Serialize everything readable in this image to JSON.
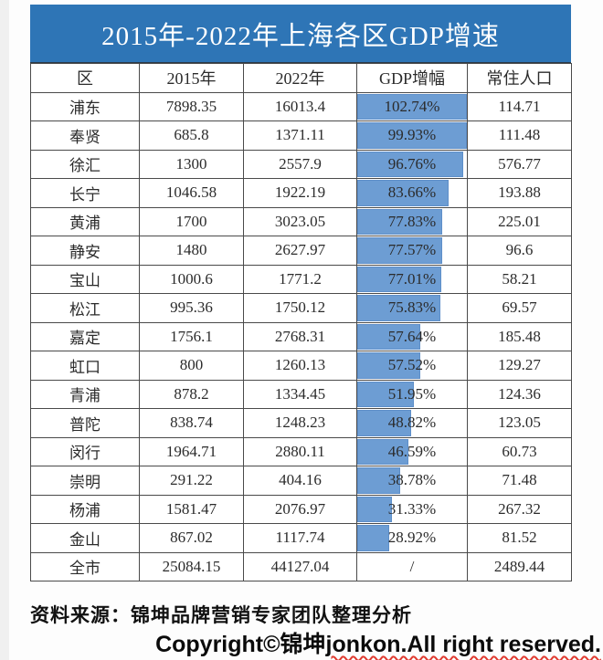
{
  "title": "2015年-2022年上海各区GDP增速",
  "table": {
    "headers": [
      "区",
      "2015年",
      "2022年",
      "GDP增幅",
      "常住人口"
    ],
    "rows": [
      {
        "district": "浦东",
        "gdp_2015": "7898.35",
        "gdp_2022": "16013.4",
        "growth": "102.74%",
        "growth_pct": 102.74,
        "population": "114.71"
      },
      {
        "district": "奉贤",
        "gdp_2015": "685.8",
        "gdp_2022": "1371.11",
        "growth": "99.93%",
        "growth_pct": 99.93,
        "population": "111.48"
      },
      {
        "district": "徐汇",
        "gdp_2015": "1300",
        "gdp_2022": "2557.9",
        "growth": "96.76%",
        "growth_pct": 96.76,
        "population": "576.77"
      },
      {
        "district": "长宁",
        "gdp_2015": "1046.58",
        "gdp_2022": "1922.19",
        "growth": "83.66%",
        "growth_pct": 83.66,
        "population": "193.88"
      },
      {
        "district": "黄浦",
        "gdp_2015": "1700",
        "gdp_2022": "3023.05",
        "growth": "77.83%",
        "growth_pct": 77.83,
        "population": "225.01"
      },
      {
        "district": "静安",
        "gdp_2015": "1480",
        "gdp_2022": "2627.97",
        "growth": "77.57%",
        "growth_pct": 77.57,
        "population": "96.6"
      },
      {
        "district": "宝山",
        "gdp_2015": "1000.6",
        "gdp_2022": "1771.2",
        "growth": "77.01%",
        "growth_pct": 77.01,
        "population": "58.21"
      },
      {
        "district": "松江",
        "gdp_2015": "995.36",
        "gdp_2022": "1750.12",
        "growth": "75.83%",
        "growth_pct": 75.83,
        "population": "69.57"
      },
      {
        "district": "嘉定",
        "gdp_2015": "1756.1",
        "gdp_2022": "2768.31",
        "growth": "57.64%",
        "growth_pct": 57.64,
        "population": "185.48"
      },
      {
        "district": "虹口",
        "gdp_2015": "800",
        "gdp_2022": "1260.13",
        "growth": "57.52%",
        "growth_pct": 57.52,
        "population": "129.27"
      },
      {
        "district": "青浦",
        "gdp_2015": "878.2",
        "gdp_2022": "1334.45",
        "growth": "51.95%",
        "growth_pct": 51.95,
        "population": "124.36"
      },
      {
        "district": "普陀",
        "gdp_2015": "838.74",
        "gdp_2022": "1248.23",
        "growth": "48.82%",
        "growth_pct": 48.82,
        "population": "123.05"
      },
      {
        "district": "闵行",
        "gdp_2015": "1964.71",
        "gdp_2022": "2880.11",
        "growth": "46.59%",
        "growth_pct": 46.59,
        "population": "60.73"
      },
      {
        "district": "崇明",
        "gdp_2015": "291.22",
        "gdp_2022": "404.16",
        "growth": "38.78%",
        "growth_pct": 38.78,
        "population": "71.48"
      },
      {
        "district": "杨浦",
        "gdp_2015": "1581.47",
        "gdp_2022": "2076.97",
        "growth": "31.33%",
        "growth_pct": 31.33,
        "population": "267.32"
      },
      {
        "district": "金山",
        "gdp_2015": "867.02",
        "gdp_2022": "1117.74",
        "growth": "28.92%",
        "growth_pct": 28.92,
        "population": "81.52"
      },
      {
        "district": "全市",
        "gdp_2015": "25084.15",
        "gdp_2022": "44127.04",
        "growth": "/",
        "growth_pct": null,
        "population": "2489.44"
      }
    ]
  },
  "footer": {
    "source": "资料来源：锦坤品牌营销专家团队整理分析",
    "copyright_prefix": "Copyright©锦坤",
    "copyright_flagged": "jonkon.All right reserved."
  },
  "colors": {
    "banner_bg": "#2E75B6",
    "banner_text": "#FFFFFF",
    "data_bar_fill": "#6D9DD3",
    "data_bar_border": "#5E8FC9",
    "table_border": "#4A4A4A",
    "text": "#2B2B2B",
    "spellcheck_underline": "#E03C31"
  },
  "chart_data": {
    "type": "table",
    "title": "2015年-2022年上海各区GDP增速",
    "columns": [
      "区",
      "2015年",
      "2022年",
      "GDP增幅",
      "常住人口"
    ],
    "categories": [
      "浦东",
      "奉贤",
      "徐汇",
      "长宁",
      "黄浦",
      "静安",
      "宝山",
      "松江",
      "嘉定",
      "虹口",
      "青浦",
      "普陀",
      "闵行",
      "崇明",
      "杨浦",
      "金山",
      "全市"
    ],
    "series": [
      {
        "name": "2015年",
        "values": [
          7898.35,
          685.8,
          1300,
          1046.58,
          1700,
          1480,
          1000.6,
          995.36,
          1756.1,
          800,
          878.2,
          838.74,
          1964.71,
          291.22,
          1581.47,
          867.02,
          25084.15
        ]
      },
      {
        "name": "2022年",
        "values": [
          16013.4,
          1371.11,
          2557.9,
          1922.19,
          3023.05,
          2627.97,
          1771.2,
          1750.12,
          2768.31,
          1260.13,
          1334.45,
          1248.23,
          2880.11,
          404.16,
          2076.97,
          1117.74,
          44127.04
        ]
      },
      {
        "name": "GDP增幅(%)",
        "values": [
          102.74,
          99.93,
          96.76,
          83.66,
          77.83,
          77.57,
          77.01,
          75.83,
          57.64,
          57.52,
          51.95,
          48.82,
          46.59,
          38.78,
          31.33,
          28.92,
          null
        ]
      },
      {
        "name": "常住人口",
        "values": [
          114.71,
          111.48,
          576.77,
          193.88,
          225.01,
          96.6,
          58.21,
          69.57,
          185.48,
          129.27,
          124.36,
          123.05,
          60.73,
          71.48,
          267.32,
          81.52,
          2489.44
        ]
      }
    ],
    "notes": "GDP增幅 column rendered as in-cell data bars, bar width = percentage value of cell width (capped at 100%), sorted descending; 全市 row shows '/'"
  }
}
